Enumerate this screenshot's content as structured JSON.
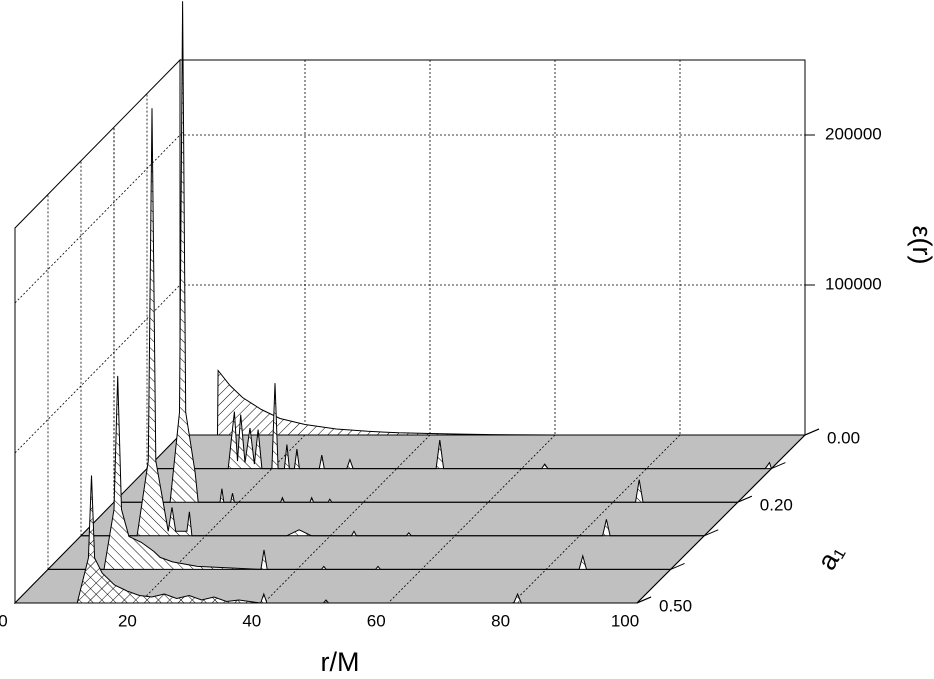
{
  "chart_data": {
    "type": "waterfall",
    "x_label": "r/M",
    "y_label": "ε(r)",
    "z_label": "a₁",
    "xlim": [
      0,
      100
    ],
    "xticks": [
      0,
      20,
      40,
      60,
      80,
      100
    ],
    "ylim": [
      0,
      250000
    ],
    "yticks": [
      100000,
      200000
    ],
    "zlim": [
      0,
      0.5
    ],
    "zticks": [
      {
        "value": 0,
        "label": "0.00"
      },
      {
        "value": 0.2,
        "label": "0.20"
      },
      {
        "value": 0.5,
        "label": "0.50"
      }
    ],
    "grid": true,
    "floor_color": "#c0c0c0",
    "series": [
      {
        "a": 0,
        "x": [
          0,
          6,
          6.1,
          8,
          10,
          13,
          16,
          20,
          25,
          30,
          35,
          40,
          45,
          50,
          60,
          100
        ],
        "values": [
          0,
          0,
          43000,
          33000,
          25000,
          17000,
          11000,
          7000,
          4000,
          2500,
          1500,
          1000,
          600,
          300,
          0,
          0
        ]
      },
      {
        "a": 0.1,
        "x": [
          0,
          13,
          14,
          14.5,
          15,
          15.7,
          16.5,
          17.2,
          17.8,
          18.4,
          20,
          20.5,
          21,
          22,
          22.4,
          22.8,
          23.6,
          24,
          24.4,
          27.6,
          28,
          28.4,
          32,
          32.5,
          33,
          46.3,
          46.9,
          47.5,
          63.2,
          63.7,
          64.2,
          99,
          99.7,
          100
        ],
        "values": [
          0,
          0,
          38000,
          5000,
          36000,
          4000,
          27000,
          3000,
          26000,
          0,
          0,
          57000,
          0,
          0,
          16000,
          0,
          0,
          13000,
          0,
          0,
          9000,
          0,
          0,
          6000,
          0,
          0,
          19000,
          0,
          0,
          3000,
          0,
          0,
          4000,
          0
        ]
      },
      {
        "a": 0.2,
        "x": [
          0,
          9,
          10.5,
          11,
          11.5,
          13,
          13.5,
          17,
          17.3,
          17.6,
          18.7,
          19,
          19.3,
          26.7,
          27,
          27.3,
          31.4,
          31.7,
          32,
          34.3,
          34.6,
          34.9,
          83.6,
          84.2,
          84.8,
          100
        ],
        "values": [
          0,
          0,
          60000,
          334000,
          60000,
          20000,
          0,
          0,
          9000,
          0,
          0,
          6000,
          0,
          0,
          3000,
          0,
          0,
          3000,
          0,
          0,
          2000,
          0,
          0,
          15000,
          0,
          0
        ]
      },
      {
        "a": 0.3,
        "x": [
          0,
          9,
          10.8,
          11.4,
          12,
          13.5,
          14,
          14.6,
          15.2,
          17,
          17.4,
          17.8,
          33,
          35,
          37,
          43.4,
          43.8,
          44.2,
          52.2,
          52.6,
          53,
          83.7,
          84.3,
          84.9,
          100
        ],
        "values": [
          0,
          0,
          50000,
          285000,
          50000,
          15000,
          3000,
          19000,
          3000,
          3000,
          16000,
          0,
          0,
          4000,
          0,
          0,
          3000,
          0,
          0,
          2000,
          0,
          0,
          11000,
          0,
          0
        ]
      },
      {
        "a": 0.4,
        "x": [
          0,
          9,
          10.6,
          11.2,
          11.8,
          13,
          15,
          17,
          18,
          20,
          24,
          34.2,
          34.7,
          35.2,
          43.9,
          44.3,
          44.7,
          52.6,
          53,
          53.4,
          85.3,
          85.9,
          86.5,
          100
        ],
        "values": [
          0,
          0,
          40000,
          129000,
          40000,
          22000,
          18000,
          12000,
          8000,
          5000,
          2000,
          0,
          13000,
          0,
          0,
          2000,
          0,
          0,
          2000,
          0,
          0,
          9000,
          0,
          0
        ]
      },
      {
        "a": 0.5,
        "x": [
          0,
          10,
          11.8,
          12.3,
          12.8,
          14,
          16,
          18,
          20,
          22,
          24,
          26,
          28,
          30,
          32,
          34,
          36,
          39.5,
          40,
          40.5,
          49.6,
          50,
          50.4,
          80.2,
          80.8,
          81.4,
          100
        ],
        "values": [
          0,
          0,
          30000,
          85000,
          30000,
          20000,
          12000,
          8000,
          5000,
          4000,
          6000,
          3000,
          5000,
          2000,
          4000,
          1000,
          2000,
          0,
          6000,
          0,
          0,
          2000,
          0,
          0,
          6000,
          0,
          0
        ]
      }
    ]
  }
}
